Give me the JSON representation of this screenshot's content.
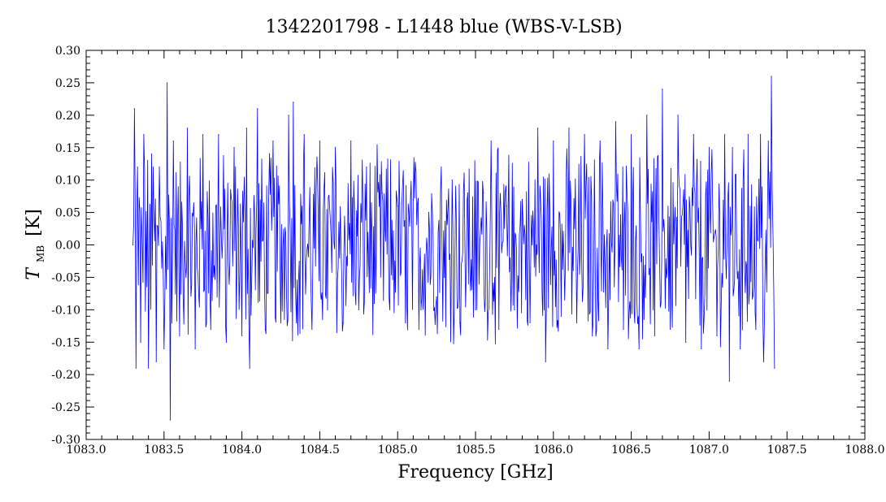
{
  "chart_data": {
    "type": "line",
    "title": "1342201798 - L1448 blue (WBS-V-LSB)",
    "xlabel": "Frequency [GHz]",
    "ylabel_main": "T",
    "ylabel_sub": "MB",
    "ylabel_unit": "[K]",
    "xlim": [
      1083.0,
      1088.0
    ],
    "ylim": [
      -0.3,
      0.3
    ],
    "x_ticks": [
      "1083.0",
      "1083.5",
      "1084.0",
      "1084.5",
      "1085.0",
      "1085.5",
      "1086.0",
      "1086.5",
      "1087.0",
      "1087.5",
      "1088.0"
    ],
    "y_ticks": [
      "-0.30",
      "-0.25",
      "-0.20",
      "-0.15",
      "-0.10",
      "-0.05",
      "0.00",
      "0.05",
      "0.10",
      "0.15",
      "0.20",
      "0.25",
      "0.30"
    ],
    "series_color": "#0000ff",
    "grid": false,
    "series": [
      {
        "x": [
          1083.3,
          1083.31,
          1083.32,
          1083.33,
          1083.35,
          1083.37,
          1083.4,
          1083.42,
          1083.45,
          1083.47,
          1083.5,
          1083.52,
          1083.54,
          1083.56,
          1083.6,
          1083.65,
          1083.7,
          1083.75,
          1083.8,
          1083.85,
          1083.9,
          1083.95,
          1084.0,
          1084.03,
          1084.05,
          1084.1,
          1084.15,
          1084.2,
          1084.25,
          1084.3,
          1084.33,
          1084.35,
          1084.4,
          1084.45,
          1084.5,
          1084.55,
          1084.6,
          1084.65,
          1084.7,
          1084.75,
          1084.8,
          1084.85,
          1084.9,
          1084.95,
          1085.0,
          1085.05,
          1085.1,
          1085.15,
          1085.2,
          1085.25,
          1085.28,
          1085.3,
          1085.35,
          1085.4,
          1085.45,
          1085.5,
          1085.55,
          1085.6,
          1085.65,
          1085.7,
          1085.75,
          1085.8,
          1085.85,
          1085.9,
          1085.95,
          1086.0,
          1086.05,
          1086.1,
          1086.15,
          1086.2,
          1086.25,
          1086.3,
          1086.35,
          1086.4,
          1086.45,
          1086.5,
          1086.55,
          1086.6,
          1086.65,
          1086.7,
          1086.75,
          1086.8,
          1086.85,
          1086.9,
          1086.95,
          1087.0,
          1087.05,
          1087.1,
          1087.13,
          1087.15,
          1087.2,
          1087.25,
          1087.3,
          1087.33,
          1087.35,
          1087.38,
          1087.4,
          1087.42
        ],
        "values": [
          0.0,
          0.21,
          -0.19,
          0.12,
          -0.15,
          0.17,
          -0.19,
          0.14,
          -0.18,
          0.12,
          -0.16,
          0.25,
          -0.27,
          0.16,
          -0.14,
          0.18,
          -0.16,
          0.17,
          -0.13,
          0.17,
          -0.15,
          0.15,
          -0.14,
          0.18,
          -0.19,
          0.21,
          -0.13,
          0.16,
          -0.12,
          0.2,
          0.22,
          -0.12,
          0.17,
          -0.13,
          0.16,
          -0.1,
          0.15,
          -0.12,
          0.16,
          -0.1,
          0.12,
          -0.09,
          0.08,
          -0.1,
          0.06,
          -0.12,
          0.07,
          -0.1,
          0.05,
          -0.08,
          0.12,
          -0.05,
          0.1,
          -0.12,
          0.08,
          -0.1,
          0.08,
          0.16,
          -0.13,
          0.06,
          -0.1,
          0.07,
          -0.12,
          0.18,
          -0.18,
          0.16,
          -0.11,
          0.18,
          -0.12,
          0.17,
          -0.14,
          0.16,
          -0.16,
          0.19,
          -0.13,
          0.17,
          -0.16,
          0.2,
          -0.14,
          0.24,
          -0.13,
          0.2,
          -0.15,
          0.17,
          -0.16,
          0.15,
          -0.14,
          0.17,
          -0.21,
          0.15,
          -0.16,
          0.17,
          -0.13,
          0.17,
          -0.18,
          0.16,
          0.26,
          -0.19
        ]
      }
    ]
  }
}
